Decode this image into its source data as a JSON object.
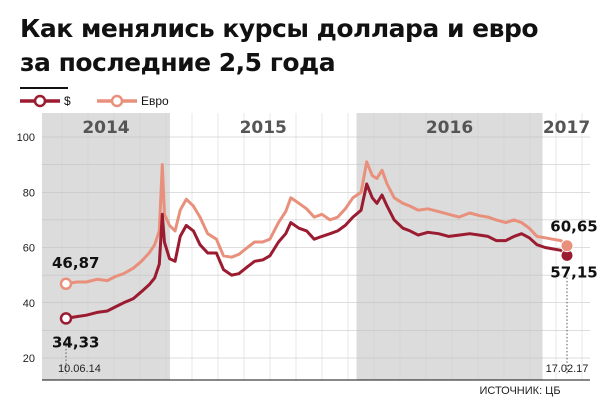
{
  "title": {
    "line1": "Как менялись курсы доллара и евро",
    "line2": "за последние 2,5 года"
  },
  "source": "ИСТОЧНИК: ЦБ",
  "chart_data": {
    "type": "line",
    "x_range": [
      "2014-06-10",
      "2017-02-17"
    ],
    "ylim": [
      20,
      100
    ],
    "yticks": [
      20,
      40,
      60,
      80,
      100
    ],
    "grid": true,
    "legend_position": "top-left",
    "years": [
      {
        "label": "2014",
        "start": "2014-06-10",
        "end": "2014-12-31",
        "shaded": true
      },
      {
        "label": "2015",
        "start": "2015-01-01",
        "end": "2015-12-31",
        "shaded": false
      },
      {
        "label": "2016",
        "start": "2016-01-01",
        "end": "2016-12-31",
        "shaded": true
      },
      {
        "label": "2017",
        "start": "2017-01-01",
        "end": "2017-02-17",
        "shaded": false
      }
    ],
    "series": [
      {
        "name": "$",
        "color": "#9b1b30",
        "start": {
          "date": "2014-06-10",
          "value": 34.33,
          "label": "34,33",
          "date_label": "10.06.14"
        },
        "end": {
          "date": "2017-02-17",
          "value": 57.15,
          "label": "57,15",
          "date_label": "17.02.17"
        },
        "points": [
          [
            "2014-06-10",
            34.33
          ],
          [
            "2014-07-01",
            35.0
          ],
          [
            "2014-07-20",
            35.5
          ],
          [
            "2014-08-10",
            36.5
          ],
          [
            "2014-08-30",
            37.0
          ],
          [
            "2014-09-15",
            38.5
          ],
          [
            "2014-10-01",
            40.0
          ],
          [
            "2014-10-20",
            41.5
          ],
          [
            "2014-11-05",
            44.0
          ],
          [
            "2014-11-20",
            46.5
          ],
          [
            "2014-12-01",
            49.0
          ],
          [
            "2014-12-10",
            54.0
          ],
          [
            "2014-12-16",
            72.0
          ],
          [
            "2014-12-20",
            62.0
          ],
          [
            "2014-12-30",
            56.0
          ],
          [
            "2015-01-10",
            55.0
          ],
          [
            "2015-01-20",
            64.0
          ],
          [
            "2015-02-01",
            68.0
          ],
          [
            "2015-02-15",
            66.0
          ],
          [
            "2015-02-28",
            61.0
          ],
          [
            "2015-03-15",
            58.0
          ],
          [
            "2015-04-01",
            58.0
          ],
          [
            "2015-04-15",
            52.0
          ],
          [
            "2015-05-01",
            50.0
          ],
          [
            "2015-05-15",
            50.5
          ],
          [
            "2015-06-01",
            53.0
          ],
          [
            "2015-06-15",
            55.0
          ],
          [
            "2015-07-01",
            55.5
          ],
          [
            "2015-07-15",
            57.0
          ],
          [
            "2015-08-01",
            62.0
          ],
          [
            "2015-08-15",
            65.0
          ],
          [
            "2015-08-25",
            69.0
          ],
          [
            "2015-09-10",
            67.0
          ],
          [
            "2015-09-25",
            66.0
          ],
          [
            "2015-10-10",
            63.0
          ],
          [
            "2015-10-25",
            64.0
          ],
          [
            "2015-11-10",
            65.0
          ],
          [
            "2015-11-25",
            66.0
          ],
          [
            "2015-12-10",
            68.0
          ],
          [
            "2015-12-25",
            71.0
          ],
          [
            "2016-01-10",
            73.5
          ],
          [
            "2016-01-21",
            83.0
          ],
          [
            "2016-02-01",
            78.0
          ],
          [
            "2016-02-10",
            76.0
          ],
          [
            "2016-02-20",
            79.0
          ],
          [
            "2016-03-01",
            75.0
          ],
          [
            "2016-03-15",
            70.0
          ],
          [
            "2016-04-01",
            67.0
          ],
          [
            "2016-04-15",
            66.0
          ],
          [
            "2016-05-01",
            64.5
          ],
          [
            "2016-05-20",
            65.5
          ],
          [
            "2016-06-10",
            65.0
          ],
          [
            "2016-06-30",
            64.0
          ],
          [
            "2016-07-20",
            64.5
          ],
          [
            "2016-08-10",
            65.0
          ],
          [
            "2016-08-30",
            64.5
          ],
          [
            "2016-09-15",
            64.0
          ],
          [
            "2016-10-01",
            62.5
          ],
          [
            "2016-10-20",
            62.5
          ],
          [
            "2016-11-05",
            64.0
          ],
          [
            "2016-11-20",
            65.0
          ],
          [
            "2016-12-05",
            63.5
          ],
          [
            "2016-12-20",
            61.0
          ],
          [
            "2017-01-05",
            60.0
          ],
          [
            "2017-01-20",
            59.5
          ],
          [
            "2017-02-05",
            59.0
          ],
          [
            "2017-02-17",
            57.15
          ]
        ]
      },
      {
        "name": "Евро",
        "color": "#e8907c",
        "start": {
          "date": "2014-06-10",
          "value": 46.87,
          "label": "46,87"
        },
        "end": {
          "date": "2017-02-17",
          "value": 60.65,
          "label": "60,65"
        },
        "points": [
          [
            "2014-06-10",
            46.87
          ],
          [
            "2014-07-01",
            47.5
          ],
          [
            "2014-07-20",
            47.5
          ],
          [
            "2014-08-10",
            48.5
          ],
          [
            "2014-08-30",
            48.0
          ],
          [
            "2014-09-15",
            49.5
          ],
          [
            "2014-10-01",
            50.5
          ],
          [
            "2014-10-20",
            52.5
          ],
          [
            "2014-11-05",
            55.0
          ],
          [
            "2014-11-20",
            58.0
          ],
          [
            "2014-12-01",
            61.0
          ],
          [
            "2014-12-10",
            66.0
          ],
          [
            "2014-12-16",
            90.0
          ],
          [
            "2014-12-20",
            72.0
          ],
          [
            "2014-12-30",
            68.0
          ],
          [
            "2015-01-10",
            66.0
          ],
          [
            "2015-01-20",
            73.5
          ],
          [
            "2015-02-01",
            77.5
          ],
          [
            "2015-02-15",
            75.0
          ],
          [
            "2015-02-28",
            71.0
          ],
          [
            "2015-03-15",
            65.0
          ],
          [
            "2015-04-01",
            63.0
          ],
          [
            "2015-04-15",
            57.0
          ],
          [
            "2015-05-01",
            56.5
          ],
          [
            "2015-05-15",
            57.5
          ],
          [
            "2015-06-01",
            60.0
          ],
          [
            "2015-06-15",
            62.0
          ],
          [
            "2015-07-01",
            62.0
          ],
          [
            "2015-07-15",
            63.0
          ],
          [
            "2015-08-01",
            69.0
          ],
          [
            "2015-08-15",
            73.0
          ],
          [
            "2015-08-25",
            78.0
          ],
          [
            "2015-09-10",
            76.0
          ],
          [
            "2015-09-25",
            74.0
          ],
          [
            "2015-10-10",
            71.0
          ],
          [
            "2015-10-25",
            72.0
          ],
          [
            "2015-11-10",
            70.0
          ],
          [
            "2015-11-25",
            71.0
          ],
          [
            "2015-12-10",
            74.0
          ],
          [
            "2015-12-25",
            78.0
          ],
          [
            "2016-01-10",
            80.0
          ],
          [
            "2016-01-21",
            91.0
          ],
          [
            "2016-02-01",
            86.0
          ],
          [
            "2016-02-10",
            85.0
          ],
          [
            "2016-02-20",
            88.0
          ],
          [
            "2016-03-01",
            83.0
          ],
          [
            "2016-03-15",
            78.0
          ],
          [
            "2016-04-01",
            76.0
          ],
          [
            "2016-04-15",
            75.0
          ],
          [
            "2016-05-01",
            73.5
          ],
          [
            "2016-05-20",
            74.0
          ],
          [
            "2016-06-10",
            73.0
          ],
          [
            "2016-06-30",
            72.0
          ],
          [
            "2016-07-20",
            71.0
          ],
          [
            "2016-08-10",
            72.5
          ],
          [
            "2016-08-30",
            71.5
          ],
          [
            "2016-09-15",
            71.0
          ],
          [
            "2016-10-01",
            70.0
          ],
          [
            "2016-10-20",
            69.0
          ],
          [
            "2016-11-05",
            70.0
          ],
          [
            "2016-11-20",
            69.0
          ],
          [
            "2016-12-05",
            67.0
          ],
          [
            "2016-12-20",
            64.0
          ],
          [
            "2017-01-05",
            63.5
          ],
          [
            "2017-01-20",
            63.0
          ],
          [
            "2017-02-05",
            62.5
          ],
          [
            "2017-02-17",
            60.65
          ]
        ]
      }
    ]
  }
}
